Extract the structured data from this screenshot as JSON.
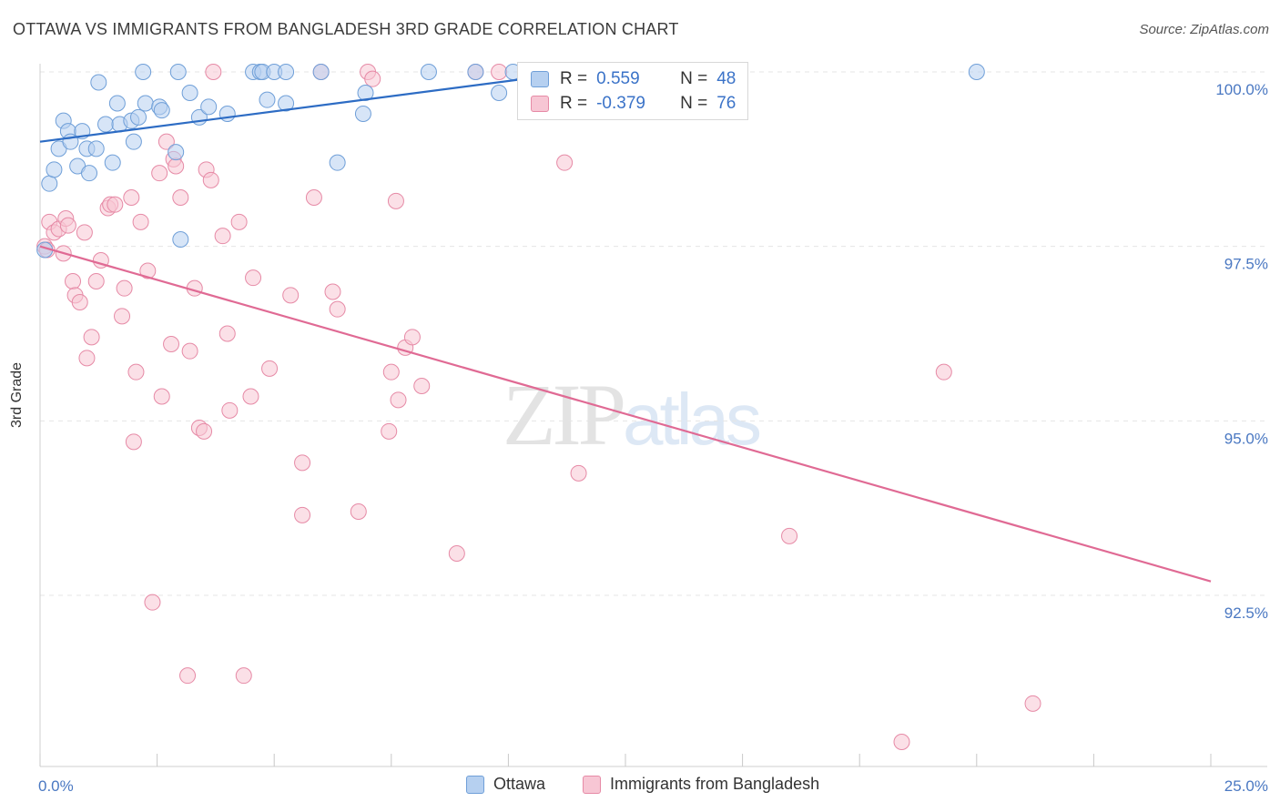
{
  "title": "OTTAWA VS IMMIGRANTS FROM BANGLADESH 3RD GRADE CORRELATION CHART",
  "source": "Source: ZipAtlas.com",
  "watermark": {
    "zip": "ZIP",
    "atlas": "atlas"
  },
  "colors": {
    "ottawa_fill": "#b6d0f0",
    "ottawa_stroke": "#6f9fd8",
    "ottawa_line": "#2d6cc4",
    "bangladesh_fill": "#f7c6d4",
    "bangladesh_stroke": "#e68aa6",
    "bangladesh_line": "#e06a94",
    "tick_text": "#4a78c2",
    "grid": "#e5e5e5"
  },
  "legend": {
    "ottawa": {
      "r_label": "R =",
      "r_value": "0.559",
      "n_label": "N =",
      "n_value": "48"
    },
    "bangladesh": {
      "r_label": "R =",
      "r_value": "-0.379",
      "n_label": "N =",
      "n_value": "76"
    }
  },
  "bottom_legend": {
    "ottawa": "Ottawa",
    "bangladesh": "Immigrants from Bangladesh"
  },
  "chart_data": {
    "type": "scatter",
    "title": "OTTAWA VS IMMIGRANTS FROM BANGLADESH 3RD GRADE CORRELATION CHART",
    "xlabel": "",
    "ylabel": "3rd Grade",
    "xlim": [
      0,
      25
    ],
    "ylim": [
      90.3,
      100.35
    ],
    "x_tick_labels": {
      "min": "0.0%",
      "max": "25.0%"
    },
    "y_ticks": [
      {
        "value": 100.0,
        "label": "100.0%"
      },
      {
        "value": 97.5,
        "label": "97.5%"
      },
      {
        "value": 95.0,
        "label": "95.0%"
      },
      {
        "value": 92.5,
        "label": "92.5%"
      }
    ],
    "grid": true,
    "legend_position": "top-center",
    "series": [
      {
        "name": "Ottawa",
        "trend": {
          "x": [
            0.0,
            11.5
          ],
          "y": [
            99.0,
            100.0
          ]
        },
        "points": [
          [
            0.2,
            98.4
          ],
          [
            0.3,
            98.6
          ],
          [
            0.4,
            98.9
          ],
          [
            0.5,
            99.3
          ],
          [
            0.6,
            99.15
          ],
          [
            0.65,
            99.0
          ],
          [
            0.8,
            98.65
          ],
          [
            0.9,
            99.15
          ],
          [
            1.0,
            98.9
          ],
          [
            1.05,
            98.55
          ],
          [
            1.2,
            98.9
          ],
          [
            1.25,
            99.85
          ],
          [
            1.4,
            99.25
          ],
          [
            1.55,
            98.7
          ],
          [
            1.7,
            99.25
          ],
          [
            1.65,
            99.55
          ],
          [
            1.95,
            99.3
          ],
          [
            2.0,
            99.0
          ],
          [
            2.1,
            99.35
          ],
          [
            2.2,
            100.0
          ],
          [
            2.25,
            99.55
          ],
          [
            2.55,
            99.5
          ],
          [
            2.6,
            99.45
          ],
          [
            2.9,
            98.85
          ],
          [
            2.95,
            100.0
          ],
          [
            3.0,
            97.6
          ],
          [
            3.2,
            99.7
          ],
          [
            3.4,
            99.35
          ],
          [
            3.6,
            99.5
          ],
          [
            4.0,
            99.4
          ],
          [
            4.55,
            100.0
          ],
          [
            4.7,
            100.0
          ],
          [
            4.75,
            100.0
          ],
          [
            4.85,
            99.6
          ],
          [
            5.0,
            100.0
          ],
          [
            5.25,
            99.55
          ],
          [
            5.25,
            100.0
          ],
          [
            6.0,
            100.0
          ],
          [
            6.35,
            98.7
          ],
          [
            6.9,
            99.4
          ],
          [
            6.95,
            99.7
          ],
          [
            8.3,
            100.0
          ],
          [
            9.3,
            100.0
          ],
          [
            9.8,
            99.7
          ],
          [
            10.1,
            100.0
          ],
          [
            12.8,
            100.0
          ],
          [
            20.0,
            100.0
          ],
          [
            0.1,
            97.45
          ]
        ]
      },
      {
        "name": "Immigrants from Bangladesh",
        "trend": {
          "x": [
            0.0,
            25.0
          ],
          "y": [
            97.5,
            92.7
          ]
        },
        "points": [
          [
            0.1,
            97.5
          ],
          [
            0.15,
            97.45
          ],
          [
            0.2,
            97.85
          ],
          [
            0.3,
            97.7
          ],
          [
            0.4,
            97.75
          ],
          [
            0.5,
            97.4
          ],
          [
            0.55,
            97.9
          ],
          [
            0.6,
            97.8
          ],
          [
            0.7,
            97.0
          ],
          [
            0.75,
            96.8
          ],
          [
            0.85,
            96.7
          ],
          [
            0.95,
            97.7
          ],
          [
            1.0,
            95.9
          ],
          [
            1.1,
            96.2
          ],
          [
            1.2,
            97.0
          ],
          [
            1.3,
            97.3
          ],
          [
            1.45,
            98.05
          ],
          [
            1.5,
            98.1
          ],
          [
            1.6,
            98.1
          ],
          [
            1.75,
            96.5
          ],
          [
            1.8,
            96.9
          ],
          [
            1.95,
            98.2
          ],
          [
            2.0,
            94.7
          ],
          [
            2.05,
            95.7
          ],
          [
            2.15,
            97.85
          ],
          [
            2.3,
            97.15
          ],
          [
            2.4,
            92.4
          ],
          [
            2.55,
            98.55
          ],
          [
            2.6,
            95.35
          ],
          [
            2.7,
            99.0
          ],
          [
            2.8,
            96.1
          ],
          [
            2.85,
            98.75
          ],
          [
            2.9,
            98.65
          ],
          [
            3.0,
            98.2
          ],
          [
            3.15,
            91.35
          ],
          [
            3.2,
            96.0
          ],
          [
            3.3,
            96.9
          ],
          [
            3.4,
            94.9
          ],
          [
            3.5,
            94.85
          ],
          [
            3.55,
            98.6
          ],
          [
            3.65,
            98.45
          ],
          [
            3.7,
            100.0
          ],
          [
            3.9,
            97.65
          ],
          [
            4.0,
            96.25
          ],
          [
            4.05,
            95.15
          ],
          [
            4.25,
            97.85
          ],
          [
            4.35,
            91.35
          ],
          [
            4.5,
            95.35
          ],
          [
            4.55,
            97.05
          ],
          [
            4.9,
            95.75
          ],
          [
            5.35,
            96.8
          ],
          [
            5.6,
            94.4
          ],
          [
            5.6,
            93.65
          ],
          [
            5.85,
            98.2
          ],
          [
            6.0,
            100.0
          ],
          [
            6.25,
            96.85
          ],
          [
            6.35,
            96.6
          ],
          [
            6.8,
            93.7
          ],
          [
            7.0,
            100.0
          ],
          [
            7.1,
            99.9
          ],
          [
            7.45,
            94.85
          ],
          [
            7.5,
            95.7
          ],
          [
            7.6,
            98.15
          ],
          [
            7.65,
            95.3
          ],
          [
            7.8,
            96.05
          ],
          [
            7.95,
            96.2
          ],
          [
            8.15,
            95.5
          ],
          [
            8.9,
            93.1
          ],
          [
            9.3,
            100.0
          ],
          [
            9.8,
            100.0
          ],
          [
            11.2,
            98.7
          ],
          [
            11.5,
            94.25
          ],
          [
            16.0,
            93.35
          ],
          [
            18.4,
            90.4
          ],
          [
            19.3,
            95.7
          ],
          [
            21.2,
            90.95
          ]
        ]
      }
    ]
  }
}
